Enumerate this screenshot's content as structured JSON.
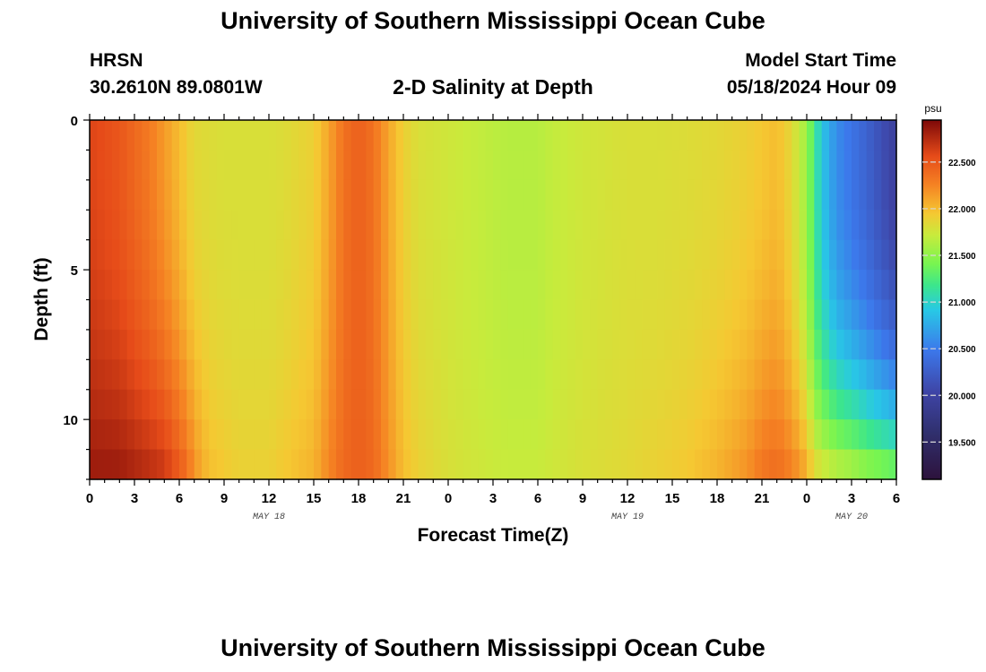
{
  "header": {
    "title": "University of Southern Mississippi Ocean Cube",
    "station": "HRSN",
    "coords": "30.2610N  89.0801W",
    "subtitle": "2-D Salinity at Depth",
    "start_label": "Model Start Time",
    "start_value": "05/18/2024 Hour 09"
  },
  "footer": {
    "title": "University of Southern Mississippi Ocean Cube"
  },
  "chart_data": {
    "type": "heatmap",
    "title": "2-D Salinity at Depth",
    "xlabel": "Forecast Time(Z)",
    "ylabel": "Depth (ft)",
    "colorbar_unit": "psu",
    "x_tick_labels": [
      "0",
      "3",
      "6",
      "9",
      "12",
      "15",
      "18",
      "21",
      "0",
      "3",
      "6",
      "9",
      "12",
      "15",
      "18",
      "21",
      "0",
      "3",
      "6"
    ],
    "date_labels": [
      {
        "text": "MAY 18",
        "hour": 12
      },
      {
        "text": "MAY 19",
        "hour": 36
      },
      {
        "text": "MAY 20",
        "hour": 51
      }
    ],
    "y_tick_labels": [
      "0",
      "5",
      "10"
    ],
    "y_ticks": [
      0,
      5,
      10
    ],
    "xlim_hours": [
      0,
      54
    ],
    "ylim_ft": [
      0,
      12
    ],
    "color_range": [
      19.1,
      22.95
    ],
    "colorbar_ticks": [
      "19.500",
      "20.000",
      "20.500",
      "21.000",
      "21.500",
      "22.000",
      "22.500"
    ],
    "colorbar_values": [
      19.5,
      20.0,
      20.5,
      21.0,
      21.5,
      22.0,
      22.5
    ],
    "grid_time_step_hours": 0.5,
    "depth_levels_ft": [
      0.5,
      1.5,
      2.5,
      3.5,
      4.5,
      5.5,
      6.5,
      7.5,
      8.5,
      9.5,
      10.5,
      11.5
    ],
    "time_keys_hours": [
      0,
      1,
      2,
      3,
      4,
      5,
      6,
      6.5,
      7,
      8,
      9,
      10,
      11,
      12,
      13,
      15,
      16,
      17,
      18,
      19,
      20,
      21,
      22,
      24,
      26,
      28,
      30,
      31,
      33,
      36,
      38,
      40,
      42,
      44,
      45,
      46,
      47,
      48,
      48.5,
      49,
      49.5,
      50,
      51,
      52,
      54
    ],
    "surface_psu": [
      22.6,
      22.55,
      22.5,
      22.4,
      22.3,
      22.15,
      22.0,
      21.92,
      21.85,
      21.82,
      21.8,
      21.8,
      21.8,
      21.8,
      21.82,
      21.9,
      22.1,
      22.35,
      22.45,
      22.35,
      22.1,
      21.9,
      21.8,
      21.75,
      21.7,
      21.65,
      21.65,
      21.7,
      21.75,
      21.8,
      21.8,
      21.82,
      21.85,
      21.9,
      21.95,
      22.0,
      21.85,
      21.55,
      21.2,
      20.9,
      20.75,
      20.6,
      20.45,
      20.3,
      19.95
    ],
    "bottom_psu": [
      22.85,
      22.85,
      22.85,
      22.8,
      22.75,
      22.7,
      22.5,
      22.4,
      22.2,
      22.0,
      21.95,
      21.9,
      21.9,
      21.9,
      21.95,
      22.05,
      22.25,
      22.4,
      22.45,
      22.4,
      22.2,
      22.0,
      21.9,
      21.8,
      21.75,
      21.72,
      21.72,
      21.75,
      21.8,
      21.85,
      21.9,
      21.95,
      22.05,
      22.2,
      22.35,
      22.4,
      22.3,
      22.1,
      21.9,
      21.85,
      21.8,
      21.75,
      21.7,
      21.6,
      21.5
    ]
  }
}
